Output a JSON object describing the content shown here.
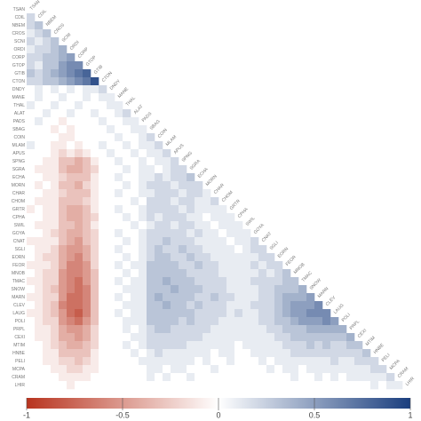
{
  "chart_data": {
    "type": "heatmap",
    "labels": [
      "TSAN",
      "CDIL",
      "NBEM",
      "CROS",
      "SCNI",
      "ORDI",
      "CORP",
      "GTOP",
      "GTIB",
      "CTON",
      "DNDY",
      "MANE",
      "THAL",
      "ALAT",
      "PADS",
      "SBAG",
      "COIN",
      "MLAM",
      "APUS",
      "SPNG",
      "SGRA",
      "ECHA",
      "MORN",
      "CHAR",
      "CHOM",
      "GRTR",
      "CPHA",
      "SWIL",
      "GOYA",
      "CNAT",
      "SGLI",
      "EORN",
      "FEOR",
      "MNOB",
      "TMAC",
      "SNOW",
      "MARN",
      "CLEV",
      "LAUG",
      "POLI",
      "PRPL",
      "CEXI",
      "MTIM",
      "HNBE",
      "PELI",
      "MCPA",
      "CRAM",
      "LHIR"
    ],
    "values": [
      [],
      [
        0.2
      ],
      [
        0.2,
        0.3
      ],
      [
        0.1,
        0.2,
        0.3
      ],
      [
        0.2,
        0.1,
        0.2,
        0.3
      ],
      [
        0.1,
        0.2,
        0.2,
        0.3,
        0.4
      ],
      [
        0.2,
        0.2,
        0.3,
        0.3,
        0.4,
        0.5
      ],
      [
        0.2,
        0.1,
        0.3,
        0.3,
        0.5,
        0.6,
        0.6
      ],
      [
        0.3,
        0.2,
        0.3,
        0.4,
        0.5,
        0.6,
        0.7,
        0.8
      ],
      [
        0.2,
        0.2,
        0.3,
        0.3,
        0.4,
        0.5,
        0.6,
        0.7,
        0.9
      ],
      [
        0,
        0.1,
        0,
        0.1,
        0,
        0.1,
        0,
        0.1,
        0.1,
        0.2
      ],
      [
        0,
        0.1,
        0,
        0,
        0.1,
        0,
        0,
        0.1,
        0,
        0.1,
        0.1
      ],
      [
        0.1,
        0,
        0,
        0.1,
        0,
        0,
        0.1,
        0,
        0,
        0,
        0.1,
        0.1
      ],
      [
        0,
        0,
        0.1,
        0,
        0,
        0.1,
        0,
        0,
        0.1,
        0,
        0,
        0.1,
        0.2
      ],
      [
        0,
        0.1,
        0,
        0,
        -0.1,
        0,
        0,
        0,
        0,
        0.1,
        0,
        0,
        0.1,
        0.1
      ],
      [
        0,
        0,
        0,
        -0.1,
        0,
        -0.1,
        0,
        0,
        0,
        0,
        0.1,
        0,
        0,
        0.1,
        0.1
      ],
      [
        0,
        0,
        0,
        0,
        -0.1,
        -0.1,
        0,
        0,
        0,
        0,
        0,
        0.1,
        0,
        0,
        0.1,
        0.2
      ],
      [
        0.1,
        0,
        0,
        -0.1,
        -0.1,
        0,
        -0.1,
        0,
        0,
        0.1,
        0,
        0,
        0.1,
        0,
        0.1,
        0.1,
        0.2
      ],
      [
        0,
        0,
        0,
        -0.1,
        -0.2,
        -0.1,
        -0.2,
        -0.1,
        0,
        0,
        0.1,
        0,
        0,
        0.1,
        0,
        0.1,
        0.1,
        0.2
      ],
      [
        0,
        0,
        -0.1,
        -0.1,
        -0.3,
        -0.3,
        -0.4,
        -0.3,
        -0.1,
        0,
        0,
        0.1,
        0,
        0,
        0.1,
        0,
        0.1,
        0.1,
        0.2
      ],
      [
        0,
        -0.1,
        -0.1,
        -0.1,
        -0.3,
        -0.4,
        -0.4,
        -0.3,
        -0.2,
        0,
        0,
        0,
        0.1,
        0,
        0.1,
        0.1,
        0,
        0.1,
        0.2,
        0.2
      ],
      [
        0,
        0,
        -0.1,
        -0.1,
        -0.2,
        -0.3,
        -0.3,
        -0.3,
        -0.1,
        0,
        0,
        0.1,
        0,
        0,
        0.1,
        0.1,
        0.2,
        0.1,
        0.2,
        0.2,
        0.3
      ],
      [
        0,
        -0.1,
        0,
        -0.1,
        -0.3,
        -0.3,
        -0.4,
        -0.2,
        -0.1,
        0,
        0,
        0,
        0.1,
        0,
        0.1,
        0.2,
        0.2,
        0.2,
        0.1,
        0.2,
        0.2,
        0.2
      ],
      [
        0,
        0,
        -0.1,
        -0.1,
        -0.2,
        -0.3,
        -0.3,
        -0.3,
        -0.1,
        0,
        0,
        0.1,
        0,
        0,
        0.1,
        0.1,
        0.2,
        0.2,
        0.2,
        0.1,
        0.2,
        0.2,
        0.1
      ],
      [
        0,
        -0.1,
        -0.1,
        -0.1,
        -0.3,
        -0.3,
        -0.3,
        -0.2,
        -0.1,
        0,
        0,
        0,
        0,
        0.1,
        0,
        0.2,
        0.2,
        0.2,
        0.1,
        0.2,
        0.2,
        0.1,
        0.1,
        0.2
      ],
      [
        -0.1,
        0,
        -0.1,
        -0.1,
        -0.3,
        -0.4,
        -0.4,
        -0.3,
        -0.1,
        0,
        0,
        0.1,
        0,
        0,
        0.1,
        0.2,
        0.2,
        0.2,
        0.2,
        0.1,
        0.2,
        0.1,
        0.1,
        0.1,
        0.1
      ],
      [
        0,
        0,
        -0.1,
        -0.1,
        -0.3,
        -0.4,
        -0.4,
        -0.3,
        -0.2,
        0,
        0,
        0,
        0.1,
        0,
        0.1,
        0.2,
        0.1,
        0.2,
        0.2,
        0.2,
        0.1,
        0.1,
        0,
        0.1,
        0.1,
        0.1
      ],
      [
        0,
        -0.1,
        -0.1,
        -0.1,
        -0.3,
        -0.3,
        -0.4,
        -0.3,
        -0.1,
        0,
        0,
        0,
        0,
        0.1,
        0,
        0.1,
        0.2,
        0.2,
        0.1,
        0.2,
        0.2,
        0.1,
        0.1,
        0,
        0.1,
        0.1,
        0.1
      ],
      [
        0,
        0,
        -0.1,
        -0.2,
        -0.3,
        -0.4,
        -0.4,
        -0.3,
        -0.2,
        0,
        0,
        0.1,
        0,
        0,
        0.1,
        0.2,
        0.2,
        0.2,
        0.2,
        0.2,
        0.1,
        0.2,
        0.1,
        0.1,
        0,
        0.1,
        0.1,
        0.1
      ],
      [
        -0.1,
        -0.1,
        -0.1,
        -0.1,
        -0.3,
        -0.4,
        -0.5,
        -0.3,
        -0.2,
        0,
        0,
        0,
        0.1,
        0,
        0.1,
        0.2,
        0.2,
        0.3,
        0.2,
        0.2,
        0.2,
        0.1,
        0.1,
        0.1,
        0.1,
        0,
        0.1,
        0.1,
        0.2
      ],
      [
        0,
        -0.1,
        -0.1,
        -0.2,
        -0.4,
        -0.5,
        -0.5,
        -0.4,
        -0.2,
        0,
        0,
        0.1,
        0,
        0,
        0.1,
        0.2,
        0.3,
        0.2,
        0.2,
        0.3,
        0.2,
        0.2,
        0.1,
        0.1,
        0.1,
        0.1,
        0,
        0.1,
        0.2,
        0.2
      ],
      [
        0,
        -0.1,
        -0.2,
        -0.2,
        -0.4,
        -0.5,
        -0.6,
        -0.4,
        -0.2,
        0,
        0,
        0,
        0.1,
        0,
        0.1,
        0.2,
        0.3,
        0.3,
        0.2,
        0.2,
        0.3,
        0.2,
        0.2,
        0.1,
        0.1,
        0.1,
        0.1,
        0.1,
        0.1,
        0.2,
        0.2
      ],
      [
        -0.1,
        -0.1,
        -0.1,
        -0.2,
        -0.4,
        -0.6,
        -0.6,
        -0.5,
        -0.2,
        0,
        0,
        0.1,
        0,
        0.1,
        0.1,
        0.3,
        0.3,
        0.3,
        0.3,
        0.2,
        0.2,
        0.3,
        0.2,
        0.2,
        0.1,
        0.1,
        0.1,
        0.1,
        0.2,
        0.1,
        0.2,
        0.2
      ],
      [
        0,
        -0.1,
        -0.2,
        -0.2,
        -0.5,
        -0.6,
        -0.6,
        -0.5,
        -0.3,
        0,
        0,
        0,
        0.1,
        0,
        0.1,
        0.3,
        0.3,
        0.3,
        0.3,
        0.3,
        0.2,
        0.2,
        0.2,
        0.2,
        0.1,
        0.1,
        0.1,
        0.1,
        0.1,
        0.2,
        0.1,
        0.2,
        0.3
      ],
      [
        -0.1,
        -0.1,
        -0.2,
        -0.2,
        -0.5,
        -0.6,
        -0.7,
        -0.5,
        -0.3,
        0,
        0,
        0.1,
        0,
        0.1,
        0.1,
        0.3,
        0.3,
        0.4,
        0.3,
        0.3,
        0.3,
        0.2,
        0.2,
        0.2,
        0.2,
        0.1,
        0.1,
        0.1,
        0.2,
        0.2,
        0.2,
        0.2,
        0.3,
        0.3
      ],
      [
        0,
        -0.1,
        -0.2,
        -0.3,
        -0.5,
        -0.6,
        -0.7,
        -0.6,
        -0.3,
        0,
        0,
        0,
        0.1,
        0.1,
        0.1,
        0.3,
        0.3,
        0.3,
        0.4,
        0.3,
        0.3,
        0.3,
        0.2,
        0.2,
        0.2,
        0.1,
        0.1,
        0.1,
        0.1,
        0.2,
        0.2,
        0.3,
        0.3,
        0.3,
        0.4
      ],
      [
        -0.1,
        -0.1,
        -0.2,
        -0.2,
        -0.5,
        -0.7,
        -0.7,
        -0.6,
        -0.3,
        0,
        0,
        0.1,
        0,
        0.1,
        0.1,
        0.3,
        0.4,
        0.3,
        0.3,
        0.3,
        0.3,
        0.2,
        0.2,
        0.3,
        0.2,
        0.2,
        0.1,
        0.1,
        0.1,
        0.2,
        0.2,
        0.3,
        0.4,
        0.4,
        0.4,
        0.5
      ],
      [
        0,
        -0.1,
        -0.2,
        -0.3,
        -0.6,
        -0.7,
        -0.7,
        -0.6,
        -0.3,
        0,
        0,
        0,
        0.1,
        0.1,
        0.1,
        0.3,
        0.3,
        0.4,
        0.3,
        0.3,
        0.2,
        0.3,
        0.2,
        0.2,
        0.2,
        0.1,
        0.1,
        0.1,
        0.2,
        0.2,
        0.2,
        0.3,
        0.4,
        0.5,
        0.5,
        0.5,
        0.6
      ],
      [
        -0.1,
        -0.1,
        -0.2,
        -0.3,
        -0.5,
        -0.7,
        -0.8,
        -0.6,
        -0.3,
        0,
        0,
        0.1,
        0,
        0.1,
        0.1,
        0.3,
        0.3,
        0.3,
        0.3,
        0.3,
        0.3,
        0.2,
        0.2,
        0.2,
        0.2,
        0.1,
        0.2,
        0.1,
        0.1,
        0.2,
        0.2,
        0.3,
        0.4,
        0.5,
        0.5,
        0.6,
        0.6,
        0.6
      ],
      [
        0,
        -0.1,
        -0.2,
        -0.2,
        -0.5,
        -0.6,
        -0.7,
        -0.5,
        -0.3,
        0,
        0,
        0,
        0.1,
        0.1,
        0.1,
        0.3,
        0.3,
        0.3,
        0.3,
        0.2,
        0.3,
        0.2,
        0.2,
        0.2,
        0.1,
        0.1,
        0.1,
        0.1,
        0.1,
        0.2,
        0.2,
        0.3,
        0.3,
        0.4,
        0.5,
        0.5,
        0.5,
        0.6,
        0.5
      ],
      [
        0,
        -0.1,
        -0.1,
        -0.2,
        -0.4,
        -0.5,
        -0.5,
        -0.4,
        -0.2,
        0,
        0,
        0,
        0.1,
        0,
        0.1,
        0.2,
        0.3,
        0.3,
        0.2,
        0.2,
        0.2,
        0.2,
        0.2,
        0.1,
        0.1,
        0.1,
        0.1,
        0.1,
        0.1,
        0.1,
        0.2,
        0.2,
        0.3,
        0.3,
        0.3,
        0.4,
        0.4,
        0.4,
        0.4,
        0.4
      ],
      [
        0,
        -0.1,
        -0.1,
        -0.2,
        -0.4,
        -0.4,
        -0.5,
        -0.4,
        -0.2,
        0,
        0,
        0,
        0,
        0.1,
        0.1,
        0.2,
        0.2,
        0.2,
        0.2,
        0.2,
        0.2,
        0.2,
        0.1,
        0.1,
        0.1,
        0.1,
        0.1,
        0.1,
        0.1,
        0.1,
        0.1,
        0.2,
        0.2,
        0.3,
        0.3,
        0.3,
        0.3,
        0.3,
        0.3,
        0.3,
        0.4
      ],
      [
        0,
        0,
        -0.1,
        -0.2,
        -0.3,
        -0.4,
        -0.4,
        -0.3,
        -0.2,
        0,
        0,
        0,
        0.1,
        0,
        0.1,
        0.2,
        0.2,
        0.2,
        0.2,
        0.2,
        0.1,
        0.1,
        0.1,
        0.1,
        0.1,
        0.1,
        0,
        0.1,
        0.1,
        0.1,
        0.1,
        0.1,
        0.2,
        0.2,
        0.2,
        0.3,
        0.2,
        0.3,
        0.2,
        0.2,
        0.3,
        0.3
      ],
      [
        0,
        0,
        -0.1,
        -0.1,
        -0.3,
        -0.3,
        -0.3,
        -0.3,
        -0.1,
        0,
        0,
        0,
        0,
        0.1,
        0,
        0.1,
        0.2,
        0.1,
        0.1,
        0.1,
        0.1,
        0.1,
        0.1,
        0,
        0.1,
        0.1,
        0,
        0,
        0.1,
        0.1,
        0.1,
        0.1,
        0.1,
        0.2,
        0.2,
        0.2,
        0.2,
        0.2,
        0.2,
        0.2,
        0.2,
        0.2,
        0.3
      ],
      [
        0,
        0,
        -0.1,
        -0.1,
        -0.2,
        -0.2,
        -0.3,
        -0.2,
        -0.1,
        0,
        0,
        0,
        0,
        0,
        0.1,
        0.1,
        0.1,
        0.1,
        0.1,
        0.1,
        0.1,
        0,
        0.1,
        0,
        0,
        0.1,
        0,
        0,
        0,
        0.1,
        0,
        0.1,
        0.1,
        0.1,
        0.1,
        0.1,
        0.1,
        0.1,
        0.2,
        0.1,
        0.1,
        0.2,
        0.2,
        0.2
      ],
      [
        0,
        0,
        0,
        -0.1,
        -0.1,
        -0.2,
        -0.2,
        -0.1,
        -0.1,
        0,
        0,
        0,
        0,
        0,
        0,
        0.1,
        0.1,
        0,
        0.1,
        0.1,
        0,
        0,
        0,
        0.1,
        0,
        0,
        0,
        0,
        0,
        0,
        0.1,
        0,
        0.1,
        0.1,
        0,
        0.1,
        0.1,
        0.1,
        0.1,
        0.1,
        0.1,
        0.1,
        0.1,
        0.2,
        0.2
      ],
      [
        0,
        0,
        0,
        0,
        -0.1,
        -0.1,
        -0.1,
        -0.1,
        0,
        0,
        0,
        0,
        0,
        0,
        0,
        0.1,
        0,
        0.1,
        0,
        0,
        0.1,
        0,
        0,
        0,
        0,
        0,
        0,
        0,
        0,
        0,
        0,
        0,
        0,
        0.1,
        0,
        0,
        0.1,
        0,
        0.1,
        0,
        0.1,
        0.1,
        0.1,
        0.1,
        0.1,
        0.2
      ],
      [
        0,
        0,
        0,
        0,
        0,
        -0.1,
        0,
        0,
        0,
        0,
        0,
        0,
        0,
        0,
        0,
        0,
        0,
        0,
        0,
        0,
        0,
        0,
        0,
        0,
        0,
        0,
        0,
        0,
        0,
        0,
        0,
        0,
        0,
        0,
        0,
        0,
        0,
        0,
        0,
        0,
        0,
        0,
        0,
        0.1,
        0,
        0.1,
        0.1
      ]
    ],
    "clim": [
      -1,
      1
    ],
    "colorbar_ticks": [
      -1,
      -0.5,
      0,
      0.5,
      1
    ],
    "colors": {
      "low": "#b8341f",
      "mid": "#ffffff",
      "high": "#1a3e7e"
    }
  }
}
